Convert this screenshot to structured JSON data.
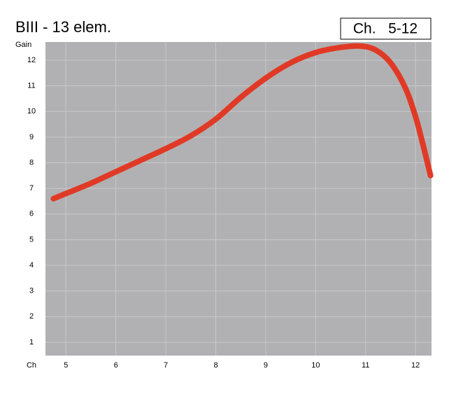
{
  "chart_data": {
    "type": "line",
    "title": "BIII - 13 elem.",
    "annotation": "Ch.   5-12",
    "ylabel": "Gain",
    "xlabel": "Ch",
    "x": [
      4.75,
      5,
      5.5,
      6,
      6.5,
      7,
      7.5,
      8,
      8.5,
      9,
      9.5,
      10,
      10.5,
      10.9,
      11.2,
      11.5,
      11.8,
      12.0,
      12.15,
      12.3
    ],
    "series": [
      {
        "name": "Gain",
        "color": "#e03a26",
        "values": [
          6.6,
          6.8,
          7.2,
          7.65,
          8.1,
          8.55,
          9.05,
          9.7,
          10.55,
          11.3,
          11.9,
          12.3,
          12.5,
          12.55,
          12.4,
          11.9,
          10.9,
          9.8,
          8.7,
          7.5
        ]
      }
    ],
    "xlim": [
      4.59,
      12.32
    ],
    "ylim": [
      0.48,
      12.71
    ],
    "xticks": [
      5,
      6,
      7,
      8,
      9,
      10,
      11,
      12
    ],
    "yticks": [
      1,
      2,
      3,
      4,
      5,
      6,
      7,
      8,
      9,
      10,
      11,
      12
    ],
    "grid": true,
    "background": "#b1b1b3"
  }
}
